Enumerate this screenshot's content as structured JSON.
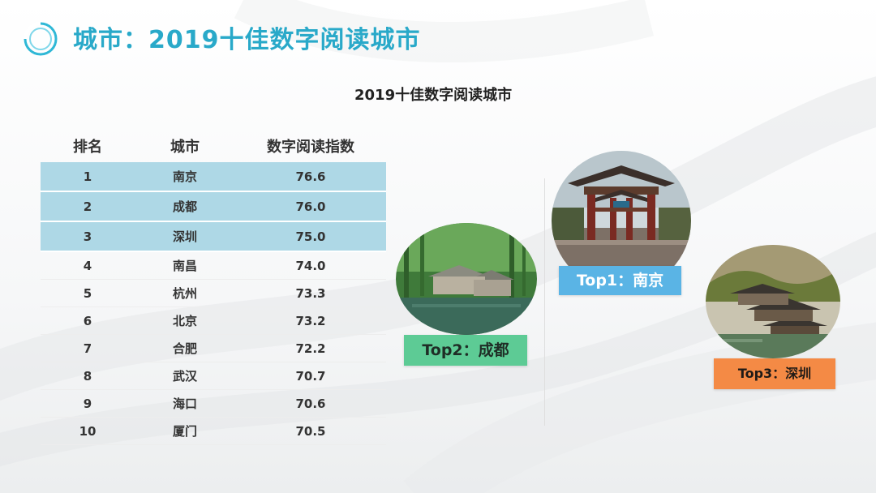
{
  "header": {
    "title": "城市：2019十佳数字阅读城市"
  },
  "table": {
    "title": "2019十佳数字阅读城市",
    "columns": [
      "排名",
      "城市",
      "数字阅读指数"
    ],
    "rows": [
      {
        "rank": "1",
        "city": "南京",
        "score": "76.6",
        "highlight": true
      },
      {
        "rank": "2",
        "city": "成都",
        "score": "76.0",
        "highlight": true
      },
      {
        "rank": "3",
        "city": "深圳",
        "score": "75.0",
        "highlight": true
      },
      {
        "rank": "4",
        "city": "南昌",
        "score": "74.0",
        "highlight": false
      },
      {
        "rank": "5",
        "city": "杭州",
        "score": "73.3",
        "highlight": false
      },
      {
        "rank": "6",
        "city": "北京",
        "score": "73.2",
        "highlight": false
      },
      {
        "rank": "7",
        "city": "合肥",
        "score": "72.2",
        "highlight": false
      },
      {
        "rank": "8",
        "city": "武汉",
        "score": "70.7",
        "highlight": false
      },
      {
        "rank": "9",
        "city": "海口",
        "score": "70.6",
        "highlight": false
      },
      {
        "rank": "10",
        "city": "厦门",
        "score": "70.5",
        "highlight": false
      }
    ]
  },
  "cards": {
    "top1": {
      "label": "Top1：南京",
      "color": "#5ab4e5",
      "text_color": "#ffffff"
    },
    "top2": {
      "label": "Top2：成都",
      "color": "#5dcb95",
      "text_color": "#1f2d26"
    },
    "top3": {
      "label": "Top3：深圳",
      "color": "#f48a45",
      "text_color": "#1f1a16"
    }
  },
  "colors": {
    "accent": "#29a9c9",
    "highlight_row": "#aed8e6"
  }
}
